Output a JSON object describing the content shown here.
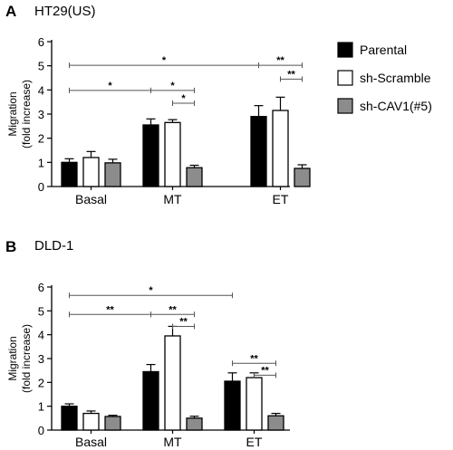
{
  "legend": [
    {
      "label": "Parental",
      "color": "#000000"
    },
    {
      "label": "sh-Scramble",
      "color": "#ffffff"
    },
    {
      "label": "sh-CAV1(#5)",
      "color": "#8c8c8c"
    }
  ],
  "chart_data": [
    {
      "type": "bar",
      "panel": "A",
      "title": "HT29(US)",
      "ylabel": [
        "Migration",
        "(fold increase)"
      ],
      "ylim": [
        0,
        6
      ],
      "yticks": [
        0,
        1,
        2,
        3,
        4,
        5,
        6
      ],
      "categories": [
        "Basal",
        "MT",
        "ET"
      ],
      "series": [
        {
          "name": "Parental",
          "values": [
            1.0,
            2.55,
            2.9
          ],
          "errors": [
            0.15,
            0.25,
            0.45
          ]
        },
        {
          "name": "sh-Scramble",
          "values": [
            1.2,
            2.65,
            3.15
          ],
          "errors": [
            0.25,
            0.12,
            0.55
          ]
        },
        {
          "name": "sh-CAV1(#5)",
          "values": [
            0.98,
            0.78,
            0.75
          ],
          "errors": [
            0.15,
            0.1,
            0.15
          ]
        }
      ],
      "significance": [
        {
          "label": "*",
          "from": [
            0,
            0
          ],
          "to": [
            2,
            0
          ],
          "y": 5.02
        },
        {
          "label": "**",
          "from": [
            2,
            0
          ],
          "to": [
            2,
            2
          ],
          "y": 5.02
        },
        {
          "label": "**",
          "from": [
            2,
            1
          ],
          "to": [
            2,
            2
          ],
          "y": 4.45
        },
        {
          "label": "*",
          "from": [
            0,
            0
          ],
          "to": [
            1,
            0
          ],
          "y": 3.98
        },
        {
          "label": "*",
          "from": [
            1,
            0
          ],
          "to": [
            1,
            2
          ],
          "y": 3.98
        },
        {
          "label": "*",
          "from": [
            1,
            1
          ],
          "to": [
            1,
            2
          ],
          "y": 3.45
        }
      ]
    },
    {
      "type": "bar",
      "panel": "B",
      "title": "DLD-1",
      "ylabel": [
        "Migration",
        "(fold increase)"
      ],
      "ylim": [
        0,
        6
      ],
      "yticks": [
        0,
        1,
        2,
        3,
        4,
        5,
        6
      ],
      "categories": [
        "Basal",
        "MT",
        "ET"
      ],
      "series": [
        {
          "name": "Parental",
          "values": [
            1.0,
            2.45,
            2.05
          ],
          "errors": [
            0.1,
            0.3,
            0.35
          ]
        },
        {
          "name": "sh-Scramble",
          "values": [
            0.7,
            3.95,
            2.2
          ],
          "errors": [
            0.1,
            0.4,
            0.2
          ]
        },
        {
          "name": "sh-CAV1(#5)",
          "values": [
            0.57,
            0.5,
            0.6
          ],
          "errors": [
            0.05,
            0.08,
            0.1
          ]
        }
      ],
      "significance": [
        {
          "label": "*",
          "from": [
            0,
            0
          ],
          "to": [
            2,
            0
          ],
          "y": 5.65
        },
        {
          "label": "**",
          "from": [
            0,
            0
          ],
          "to": [
            1,
            0
          ],
          "y": 4.85
        },
        {
          "label": "**",
          "from": [
            1,
            0
          ],
          "to": [
            1,
            2
          ],
          "y": 4.85
        },
        {
          "label": "**",
          "from": [
            1,
            1
          ],
          "to": [
            1,
            2
          ],
          "y": 4.35
        },
        {
          "label": "**",
          "from": [
            2,
            0
          ],
          "to": [
            2,
            2
          ],
          "y": 2.8
        },
        {
          "label": "**",
          "from": [
            2,
            1
          ],
          "to": [
            2,
            2
          ],
          "y": 2.3
        }
      ]
    }
  ]
}
